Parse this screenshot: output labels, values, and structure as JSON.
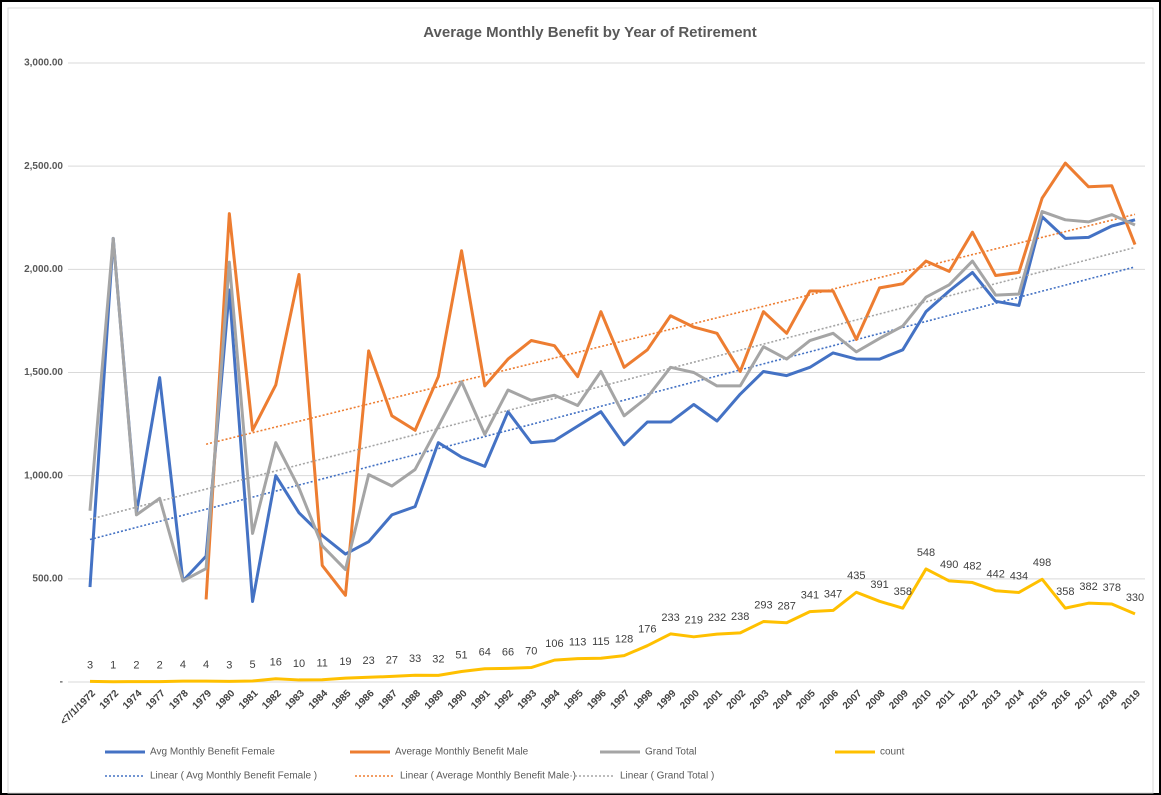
{
  "chart_data": {
    "type": "line",
    "title": "Average Monthly Benefit by Year of Retirement",
    "categories": [
      "<7/1/1972",
      "1972",
      "1974",
      "1977",
      "1978",
      "1979",
      "1980",
      "1981",
      "1982",
      "1983",
      "1984",
      "1985",
      "1986",
      "1987",
      "1988",
      "1989",
      "1990",
      "1991",
      "1992",
      "1993",
      "1994",
      "1995",
      "1996",
      "1997",
      "1998",
      "1999",
      "2000",
      "2001",
      "2002",
      "2003",
      "2004",
      "2005",
      "2006",
      "2007",
      "2008",
      "2009",
      "2010",
      "2011",
      "2012",
      "2013",
      "2014",
      "2015",
      "2016",
      "2017",
      "2018",
      "2019"
    ],
    "ylim": [
      0,
      3000
    ],
    "yticks": [
      {
        "value": 0,
        "label": "-"
      },
      {
        "value": 500,
        "label": "500.00"
      },
      {
        "value": 1000,
        "label": "1,000.00"
      },
      {
        "value": 1500,
        "label": "1,500.00"
      },
      {
        "value": 2000,
        "label": "2,000.00"
      },
      {
        "value": 2500,
        "label": "2,500.00"
      },
      {
        "value": 3000,
        "label": "3,000.00"
      }
    ],
    "grid": true,
    "series": [
      {
        "name": "Avg Monthly Benefit Female",
        "color": "#4472c4",
        "trendline": "Linear ( Avg Monthly Benefit Female )",
        "values": [
          460,
          2150,
          820,
          1475,
          490,
          610,
          1900,
          390,
          1000,
          820,
          710,
          620,
          680,
          810,
          850,
          1160,
          1090,
          1045,
          1310,
          1160,
          1170,
          1240,
          1310,
          1150,
          1260,
          1260,
          1345,
          1265,
          1395,
          1505,
          1485,
          1525,
          1595,
          1565,
          1565,
          1610,
          1795,
          1895,
          1985,
          1845,
          1825,
          2255,
          2150,
          2155,
          2210,
          2240
        ]
      },
      {
        "name": "Average Monthly Benefit Male",
        "color": "#ed7d31",
        "trendline": "Linear ( Average Monthly Benefit Male·)",
        "values": [
          null,
          null,
          null,
          null,
          null,
          400,
          2270,
          1220,
          1440,
          1975,
          565,
          420,
          1605,
          1290,
          1220,
          1480,
          2090,
          1435,
          1565,
          1655,
          1630,
          1480,
          1795,
          1525,
          1610,
          1775,
          1720,
          1690,
          1505,
          1795,
          1690,
          1895,
          1895,
          1660,
          1910,
          1930,
          2040,
          1990,
          2180,
          1970,
          1985,
          2345,
          2515,
          2400,
          2405,
          2120
        ]
      },
      {
        "name": "Grand Total",
        "color": "#a5a5a5",
        "trendline": "Linear ( Grand Total )",
        "values": [
          830,
          2150,
          810,
          890,
          490,
          550,
          2035,
          720,
          1160,
          940,
          660,
          545,
          1005,
          950,
          1030,
          1240,
          1455,
          1200,
          1415,
          1365,
          1390,
          1340,
          1505,
          1290,
          1380,
          1525,
          1500,
          1435,
          1435,
          1625,
          1565,
          1655,
          1690,
          1600,
          1665,
          1725,
          1865,
          1925,
          2040,
          1875,
          1880,
          2280,
          2240,
          2230,
          2265,
          2215
        ]
      },
      {
        "name": "count",
        "color": "#ffc000",
        "data_labels": true,
        "values": [
          3,
          1,
          2,
          2,
          4,
          4,
          3,
          5,
          16,
          10,
          11,
          19,
          23,
          27,
          33,
          32,
          51,
          64,
          66,
          70,
          106,
          113,
          115,
          128,
          176,
          233,
          219,
          232,
          238,
          293,
          287,
          341,
          347,
          435,
          391,
          358,
          548,
          490,
          482,
          442,
          434,
          498,
          358,
          382,
          378,
          330
        ]
      }
    ]
  }
}
